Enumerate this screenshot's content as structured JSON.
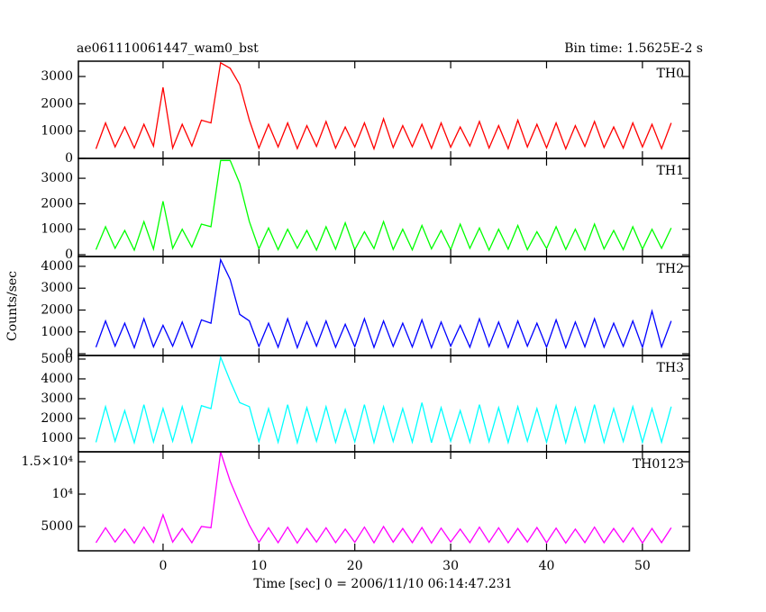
{
  "title": "ae061110061447_wam0_bst",
  "bin_time": "Bin time: 1.5625E-2 s",
  "ylabel": "Counts/sec",
  "xlabel": "Time [sec] 0 = 2006/11/10 06:14:47.231",
  "chart_data": [
    {
      "type": "line",
      "x": [
        -7,
        -6,
        -5,
        -4,
        -3,
        -2,
        -1,
        0,
        1,
        2,
        3,
        4,
        5,
        6,
        7,
        8,
        9,
        10,
        11,
        12,
        13,
        14,
        15,
        16,
        17,
        18,
        19,
        20,
        21,
        22,
        23,
        24,
        25,
        26,
        27,
        28,
        29,
        30,
        31,
        32,
        33,
        34,
        35,
        36,
        37,
        38,
        39,
        40,
        41,
        42,
        43,
        44,
        45,
        46,
        47,
        48,
        49,
        50,
        51,
        52,
        53
      ],
      "xlim": [
        -8.83,
        54.9
      ],
      "xticks": [
        0,
        10,
        20,
        30,
        40,
        50
      ],
      "ylim": [
        0,
        3560
      ],
      "yticks": [
        0,
        1000,
        2000,
        3000
      ],
      "series": [
        {
          "name": "TH0",
          "color": "#ff0000",
          "values": [
            350,
            1300,
            420,
            1150,
            380,
            1250,
            450,
            2600,
            380,
            1250,
            450,
            1400,
            1300,
            3500,
            3300,
            2700,
            1400,
            380,
            1250,
            420,
            1300,
            360,
            1200,
            440,
            1350,
            380,
            1150,
            420,
            1300,
            350,
            1450,
            400,
            1200,
            430,
            1250,
            370,
            1300,
            410,
            1150,
            450,
            1350,
            380,
            1200,
            360,
            1400,
            420,
            1250,
            390,
            1300,
            350,
            1200,
            440,
            1350,
            400,
            1150,
            380,
            1300,
            420,
            1250,
            360,
            1300
          ]
        }
      ]
    },
    {
      "type": "line",
      "x": [
        -7,
        -6,
        -5,
        -4,
        -3,
        -2,
        -1,
        0,
        1,
        2,
        3,
        4,
        5,
        6,
        7,
        8,
        9,
        10,
        11,
        12,
        13,
        14,
        15,
        16,
        17,
        18,
        19,
        20,
        21,
        22,
        23,
        24,
        25,
        26,
        27,
        28,
        29,
        30,
        31,
        32,
        33,
        34,
        35,
        36,
        37,
        38,
        39,
        40,
        41,
        42,
        43,
        44,
        45,
        46,
        47,
        48,
        49,
        50,
        51,
        52,
        53
      ],
      "xlim": [
        -8.83,
        54.9
      ],
      "xticks": [
        0,
        10,
        20,
        30,
        40,
        50
      ],
      "ylim": [
        -70,
        3780
      ],
      "yticks": [
        0,
        1000,
        2000,
        3000
      ],
      "series": [
        {
          "name": "TH1",
          "color": "#00ff00",
          "values": [
            200,
            1100,
            250,
            950,
            180,
            1300,
            220,
            2100,
            250,
            1000,
            300,
            1200,
            1100,
            3700,
            3700,
            2800,
            1300,
            230,
            1050,
            200,
            1000,
            250,
            950,
            180,
            1100,
            220,
            1250,
            200,
            900,
            240,
            1300,
            210,
            1000,
            190,
            1150,
            230,
            950,
            200,
            1200,
            250,
            1050,
            180,
            1000,
            220,
            1150,
            200,
            900,
            240,
            1100,
            210,
            1000,
            190,
            1200,
            230,
            950,
            200,
            1100,
            220,
            1000,
            250,
            1050
          ]
        }
      ]
    },
    {
      "type": "line",
      "x": [
        -7,
        -6,
        -5,
        -4,
        -3,
        -2,
        -1,
        0,
        1,
        2,
        3,
        4,
        5,
        6,
        7,
        8,
        9,
        10,
        11,
        12,
        13,
        14,
        15,
        16,
        17,
        18,
        19,
        20,
        21,
        22,
        23,
        24,
        25,
        26,
        27,
        28,
        29,
        30,
        31,
        32,
        33,
        34,
        35,
        36,
        37,
        38,
        39,
        40,
        41,
        42,
        43,
        44,
        45,
        46,
        47,
        48,
        49,
        50,
        51,
        52,
        53
      ],
      "xlim": [
        -8.83,
        54.9
      ],
      "xticks": [
        0,
        10,
        20,
        30,
        40,
        50
      ],
      "ylim": [
        -80,
        4450
      ],
      "yticks": [
        0,
        1000,
        2000,
        3000,
        4000
      ],
      "series": [
        {
          "name": "TH2",
          "color": "#0000ff",
          "values": [
            300,
            1500,
            350,
            1400,
            280,
            1600,
            320,
            1300,
            350,
            1450,
            300,
            1550,
            1400,
            4300,
            3400,
            1800,
            1500,
            330,
            1400,
            300,
            1600,
            280,
            1450,
            350,
            1500,
            300,
            1350,
            320,
            1600,
            290,
            1500,
            340,
            1400,
            310,
            1550,
            280,
            1450,
            350,
            1300,
            300,
            1600,
            330,
            1450,
            290,
            1500,
            350,
            1400,
            300,
            1550,
            280,
            1450,
            320,
            1600,
            300,
            1400,
            340,
            1500,
            290,
            1950,
            310,
            1500
          ]
        }
      ]
    },
    {
      "type": "line",
      "x": [
        -7,
        -6,
        -5,
        -4,
        -3,
        -2,
        -1,
        0,
        1,
        2,
        3,
        4,
        5,
        6,
        7,
        8,
        9,
        10,
        11,
        12,
        13,
        14,
        15,
        16,
        17,
        18,
        19,
        20,
        21,
        22,
        23,
        24,
        25,
        26,
        27,
        28,
        29,
        30,
        31,
        32,
        33,
        34,
        35,
        36,
        37,
        38,
        39,
        40,
        41,
        42,
        43,
        44,
        45,
        46,
        47,
        48,
        49,
        50,
        51,
        52,
        53
      ],
      "xlim": [
        -8.83,
        54.9
      ],
      "xticks": [
        0,
        10,
        20,
        30,
        40,
        50
      ],
      "ylim": [
        318,
        5180
      ],
      "yticks": [
        1000,
        2000,
        3000,
        4000,
        5000
      ],
      "series": [
        {
          "name": "TH3",
          "color": "#00ffff",
          "values": [
            800,
            2600,
            850,
            2400,
            780,
            2700,
            820,
            2500,
            850,
            2600,
            800,
            2650,
            2500,
            5100,
            3900,
            2800,
            2600,
            830,
            2500,
            800,
            2700,
            780,
            2550,
            850,
            2600,
            800,
            2450,
            820,
            2700,
            790,
            2600,
            840,
            2500,
            810,
            2800,
            780,
            2550,
            850,
            2400,
            800,
            2700,
            830,
            2550,
            790,
            2600,
            850,
            2500,
            800,
            2650,
            780,
            2550,
            820,
            2700,
            800,
            2500,
            840,
            2600,
            790,
            2500,
            810,
            2600
          ]
        }
      ]
    },
    {
      "type": "line",
      "x": [
        -7,
        -6,
        -5,
        -4,
        -3,
        -2,
        -1,
        0,
        1,
        2,
        3,
        4,
        5,
        6,
        7,
        8,
        9,
        10,
        11,
        12,
        13,
        14,
        15,
        16,
        17,
        18,
        19,
        20,
        21,
        22,
        23,
        24,
        25,
        26,
        27,
        28,
        29,
        30,
        31,
        32,
        33,
        34,
        35,
        36,
        37,
        38,
        39,
        40,
        41,
        42,
        43,
        44,
        45,
        46,
        47,
        48,
        49,
        50,
        51,
        52,
        53
      ],
      "xlim": [
        -8.83,
        54.9
      ],
      "xticks": [
        0,
        10,
        20,
        30,
        40,
        50
      ],
      "ylim": [
        1250,
        16530
      ],
      "yticks": [
        5000,
        {
          "value": 10000,
          "label": "10⁴"
        },
        {
          "value": 15000,
          "label": "1.5×10⁴"
        }
      ],
      "series": [
        {
          "name": "TH0123",
          "color": "#ff00ff",
          "values": [
            2500,
            4800,
            2600,
            4600,
            2450,
            4900,
            2550,
            6800,
            2600,
            4700,
            2500,
            5000,
            4800,
            16500,
            12000,
            8500,
            5200,
            2550,
            4800,
            2500,
            4900,
            2450,
            4700,
            2600,
            4800,
            2500,
            4600,
            2550,
            4900,
            2480,
            5000,
            2580,
            4700,
            2520,
            4850,
            2450,
            4750,
            2600,
            4600,
            2500,
            4900,
            2550,
            4800,
            2480,
            4700,
            2600,
            4850,
            2500,
            4750,
            2450,
            4600,
            2520,
            4900,
            2500,
            4700,
            2580,
            4800,
            2450,
            4700,
            2520,
            4800
          ]
        }
      ]
    }
  ]
}
